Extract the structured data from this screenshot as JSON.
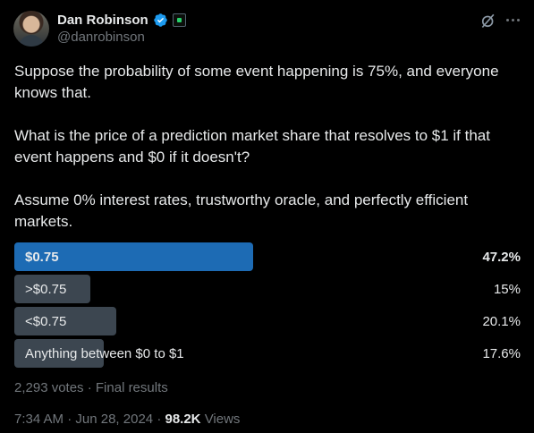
{
  "author": {
    "display_name": "Dan Robinson",
    "handle": "@danrobinson",
    "avatar_icon": "avatar-photo",
    "verified_icon": "verified-badge-icon",
    "affiliation_icon": "affiliation-badge-icon"
  },
  "header_actions": {
    "grok_icon": "grok-icon",
    "more_icon": "more-dots-icon"
  },
  "tweet": {
    "paragraphs": [
      "Suppose the probability of some event happening is 75%, and everyone knows that.",
      "What is the price of a prediction market share that resolves to $1 if that event happens and $0 if it doesn't?",
      "Assume 0% interest rates, trustworthy oracle, and perfectly efficient markets."
    ]
  },
  "poll": {
    "options": [
      {
        "label": "$0.75",
        "percent_text": "47.2%",
        "percent": 47.2,
        "winner": true
      },
      {
        "label": ">$0.75",
        "percent_text": "15%",
        "percent": 15,
        "winner": false
      },
      {
        "label": "<$0.75",
        "percent_text": "20.1%",
        "percent": 20.1,
        "winner": false
      },
      {
        "label": "Anything between $0 to $1",
        "percent_text": "17.6%",
        "percent": 17.6,
        "winner": false
      }
    ],
    "votes_text": "2,293 votes · Final results"
  },
  "meta": {
    "time": "7:34 AM",
    "separator": "·",
    "date": "Jun 28, 2024",
    "views_count": "98.2K",
    "views_label": "Views"
  },
  "colors": {
    "background": "#000000",
    "winner_bar": "#1d6bb4",
    "other_bar": "#3c4650",
    "muted_text": "#71767b",
    "verified_blue": "#1d9bf0"
  }
}
